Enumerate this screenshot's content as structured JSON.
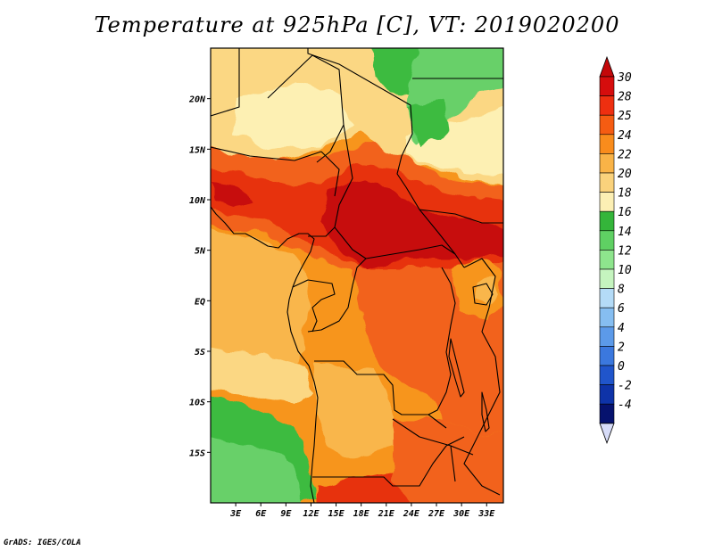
{
  "title": "Temperature at 925hPa [C], VT: 2019020200",
  "credit": "GrADS: IGES/COLA",
  "map": {
    "lat_ticks": [
      {
        "value": 20,
        "label": "20N"
      },
      {
        "value": 15,
        "label": "15N"
      },
      {
        "value": 10,
        "label": "10N"
      },
      {
        "value": 5,
        "label": "5N"
      },
      {
        "value": 0,
        "label": "EQ"
      },
      {
        "value": -5,
        "label": "5S"
      },
      {
        "value": -10,
        "label": "10S"
      },
      {
        "value": -15,
        "label": "15S"
      }
    ],
    "lon_ticks": [
      {
        "value": 3,
        "label": "3E"
      },
      {
        "value": 6,
        "label": "6E"
      },
      {
        "value": 9,
        "label": "9E"
      },
      {
        "value": 12,
        "label": "12E"
      },
      {
        "value": 15,
        "label": "15E"
      },
      {
        "value": 18,
        "label": "18E"
      },
      {
        "value": 21,
        "label": "21E"
      },
      {
        "value": 24,
        "label": "24E"
      },
      {
        "value": 27,
        "label": "27E"
      },
      {
        "value": 30,
        "label": "30E"
      },
      {
        "value": 33,
        "label": "33E"
      }
    ]
  },
  "colorbar": {
    "bins": [
      {
        "color": "#d60d0d"
      },
      {
        "color": "#ee2f10"
      },
      {
        "color": "#f55c12"
      },
      {
        "color": "#f98c1c"
      },
      {
        "color": "#f9b347"
      },
      {
        "color": "#fad27c"
      },
      {
        "color": "#fcefb4"
      },
      {
        "color": "#34b53a"
      },
      {
        "color": "#5fd063"
      },
      {
        "color": "#8ee58d"
      },
      {
        "color": "#c5f4bf"
      },
      {
        "color": "#b4dbf7"
      },
      {
        "color": "#86bef1"
      },
      {
        "color": "#5c9ae9"
      },
      {
        "color": "#3b78de"
      },
      {
        "color": "#2055cb"
      },
      {
        "color": "#0e33a8"
      },
      {
        "color": "#06126e"
      }
    ],
    "top_triangle_color": "#c4080a",
    "bottom_triangle_color": "#d7dcf8",
    "labels": [
      "30",
      "28",
      "25",
      "24",
      "22",
      "20",
      "18",
      "16",
      "14",
      "12",
      "10",
      "8",
      "6",
      "4",
      "2",
      "0",
      "-2",
      "-4"
    ]
  },
  "colors": {
    "t30": "#c70e0b",
    "t28": "#e7330d",
    "t25": "#f2621b",
    "t24": "#f7951f",
    "t22": "#f9b64c",
    "t20": "#fbd783",
    "t18": "#fdf0b3",
    "t16": "#3dbb40",
    "t14": "#67d069",
    "t12": "#9ee99c"
  }
}
